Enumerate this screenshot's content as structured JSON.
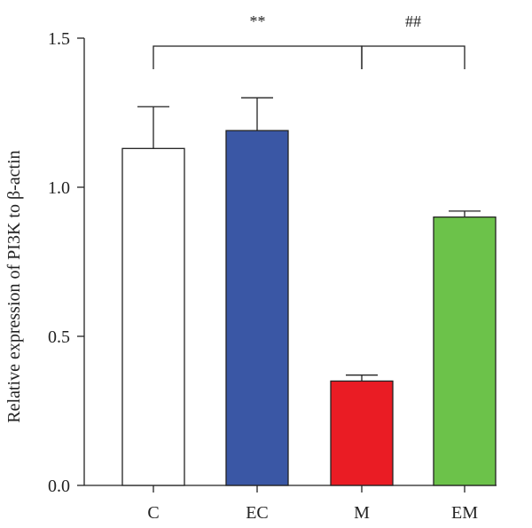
{
  "chart_data": {
    "type": "bar",
    "title": "",
    "xlabel": "",
    "ylabel": "Relative expression of PI3K to β-actin",
    "ylim": [
      0,
      1.5
    ],
    "yticks": [
      {
        "value": 0.0,
        "label": "0.0"
      },
      {
        "value": 0.5,
        "label": "0.5"
      },
      {
        "value": 1.0,
        "label": "1.0"
      },
      {
        "value": 1.5,
        "label": "1.5"
      }
    ],
    "categories": [
      "C",
      "EC",
      "M",
      "EM"
    ],
    "values": [
      1.13,
      1.19,
      0.35,
      0.9
    ],
    "errors": [
      0.14,
      0.11,
      0.02,
      0.02
    ],
    "colors": [
      "#ffffff",
      "#3a57a5",
      "#ea1c24",
      "#6cc24a"
    ],
    "significance": [
      {
        "from": 0,
        "to": 2,
        "label": "**"
      },
      {
        "from": 2,
        "to": 3,
        "label": "##"
      }
    ],
    "grid": false,
    "legend": "none"
  }
}
